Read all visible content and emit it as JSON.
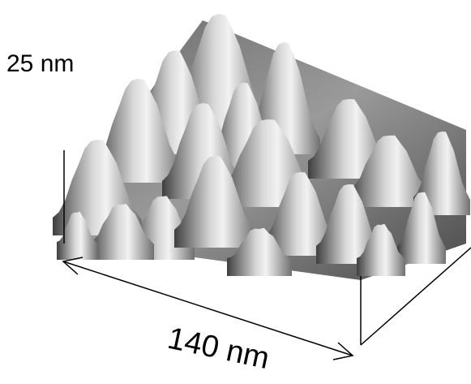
{
  "labels": {
    "height": "25 nm",
    "width": "140 nm"
  }
}
